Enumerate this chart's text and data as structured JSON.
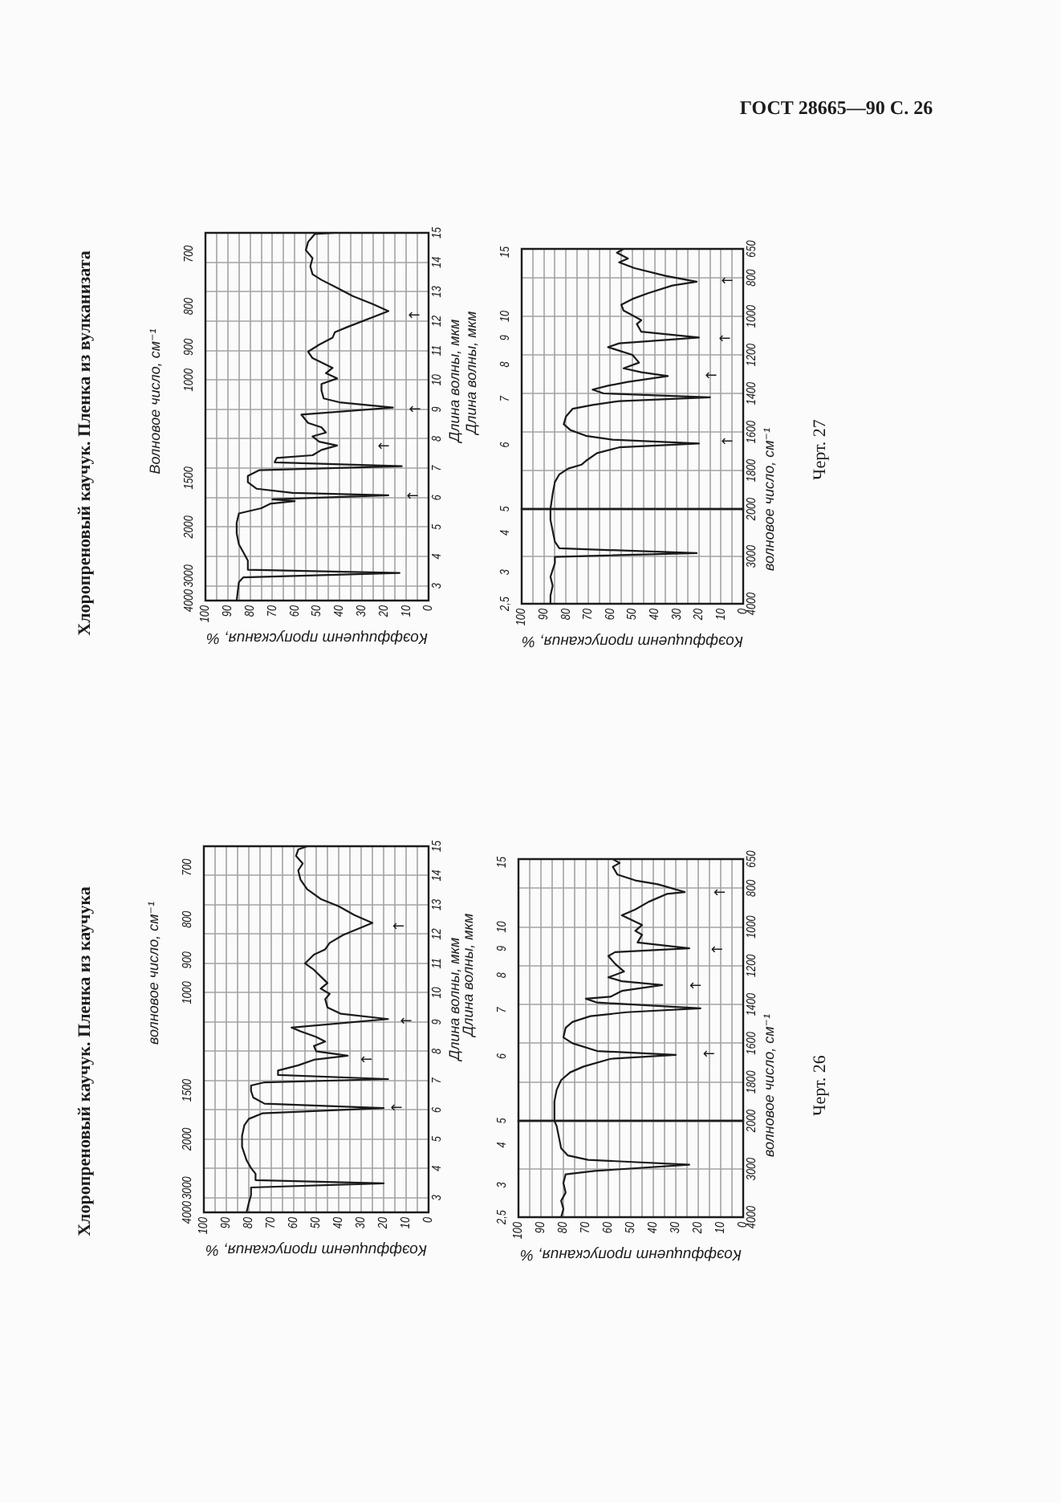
{
  "chart_data": [
    {
      "type": "line",
      "title": "Хлоропреновый каучук. Пленка из вулканизата",
      "xlabel": "Коэффициент пропускания, %",
      "ylabel": "Длина волны, мкм",
      "y2label": "Волновое число, см⁻¹",
      "xlim": [
        100,
        0
      ],
      "xticks": [
        100,
        {
          "value": 95,
          "label": null
        },
        90,
        {
          "value": 85,
          "label": null
        },
        80,
        {
          "value": 75,
          "label": null
        },
        70,
        {
          "value": 65,
          "label": null
        },
        60,
        {
          "value": 55,
          "label": null
        },
        50,
        {
          "value": 45,
          "label": null
        },
        40,
        {
          "value": 35,
          "label": null
        },
        30,
        {
          "value": 25,
          "label": null
        },
        20,
        {
          "value": 15,
          "label": null
        },
        10,
        {
          "value": 5,
          "label": null
        },
        0
      ],
      "ylim": [
        2.5,
        15
      ],
      "yticks": [
        3,
        4,
        5,
        6,
        7,
        8,
        9,
        10,
        11,
        12,
        13,
        14,
        15
      ],
      "grid": true,
      "marker": "none",
      "line_style": "solid",
      "series": [
        {
          "color": "#1a1a1a",
          "x": [
            86,
            85,
            83,
            13,
            81,
            81,
            83,
            85,
            86,
            86,
            85,
            75,
            71,
            60,
            70,
            18,
            61,
            77,
            81,
            81,
            76,
            12,
            69,
            68,
            52,
            48,
            41,
            49,
            52,
            46,
            48,
            54,
            57,
            16,
            40,
            47,
            48,
            48,
            41,
            46,
            43,
            52,
            54,
            49,
            43,
            42,
            36,
            18,
            25,
            34,
            41,
            48,
            52,
            53,
            52,
            55,
            54,
            51,
            42
          ],
          "values": [
            2.5,
            3.13,
            3.29,
            3.44,
            3.55,
            3.86,
            4.14,
            4.41,
            4.78,
            5.15,
            5.46,
            5.64,
            5.79,
            5.88,
            5.94,
            6.08,
            6.16,
            6.3,
            6.52,
            6.74,
            6.93,
            7.07,
            7.2,
            7.35,
            7.44,
            7.62,
            7.77,
            7.9,
            8.08,
            8.21,
            8.39,
            8.54,
            8.82,
            9.06,
            9.24,
            9.37,
            9.64,
            9.86,
            10.05,
            10.23,
            10.41,
            10.74,
            10.96,
            11.2,
            11.44,
            11.62,
            11.81,
            12.34,
            12.58,
            12.85,
            13.13,
            13.4,
            13.59,
            13.86,
            14.14,
            14.41,
            14.69,
            14.96,
            15
          ]
        }
      ],
      "annotations": [
        "4000",
        "3000",
        "2000",
        "1500",
        "1000",
        "900",
        "800",
        "700",
        "←",
        "←",
        "←",
        "←"
      ]
    },
    {
      "type": "line",
      "ylabel": "волновое число, см⁻¹",
      "y2label": "Длина волны, мкм",
      "xlim": [
        100,
        0
      ],
      "xticks": [
        100,
        {
          "value": 95,
          "label": null
        },
        90,
        {
          "value": 85,
          "label": null
        },
        80,
        {
          "value": 75,
          "label": null
        },
        70,
        {
          "value": 65,
          "label": null
        },
        60,
        {
          "value": 55,
          "label": null
        },
        50,
        {
          "value": 45,
          "label": null
        },
        40,
        {
          "value": 35,
          "label": null
        },
        30,
        {
          "value": 25,
          "label": null
        },
        20,
        {
          "value": 15,
          "label": null
        },
        10,
        {
          "value": 5,
          "label": null
        },
        0
      ],
      "ylim": [
        2000,
        650
      ],
      "yticks": [
        2000,
        1800,
        1600,
        1400,
        1200,
        1000,
        800,
        650
      ],
      "tick_labels": "y",
      "grid": true,
      "marker": "none",
      "line_style": "solid",
      "series": [
        {
          "color": "#1a1a1a",
          "x": [
            87,
            86,
            85,
            83,
            79,
            73,
            71,
            66,
            56,
            20,
            59,
            71,
            78,
            81,
            80,
            77,
            68,
            56,
            15,
            63,
            68,
            61,
            52,
            34,
            46,
            54,
            47,
            50,
            61,
            56,
            20,
            46,
            48,
            46,
            54,
            55,
            50,
            43,
            32,
            21,
            35,
            49,
            56,
            52,
            57,
            54
          ],
          "values": [
            2000,
            1920,
            1860,
            1820,
            1790,
            1770,
            1750,
            1710,
            1680,
            1660,
            1640,
            1620,
            1590,
            1560,
            1520,
            1480,
            1460,
            1440,
            1420,
            1400,
            1380,
            1360,
            1340,
            1310,
            1290,
            1270,
            1240,
            1200,
            1160,
            1140,
            1110,
            1080,
            1040,
            1020,
            970,
            940,
            910,
            880,
            840,
            820,
            790,
            750,
            720,
            700,
            670,
            650
          ]
        }
      ],
      "annotations": [
        "5",
        "6",
        "7",
        "8",
        "9",
        "10",
        "15",
        "←",
        "←",
        "←",
        "←",
        "ГОСТ 28665—90 С. 26",
        "Черт. 27"
      ]
    },
    {
      "type": "line",
      "xlabel": "Коэффициент пропускания, %",
      "xlim": [
        100,
        0
      ],
      "xticks": [
        100,
        {
          "value": 95,
          "label": null
        },
        90,
        {
          "value": 85,
          "label": null
        },
        80,
        {
          "value": 75,
          "label": null
        },
        70,
        {
          "value": 65,
          "label": null
        },
        60,
        {
          "value": 55,
          "label": null
        },
        50,
        {
          "value": 45,
          "label": null
        },
        40,
        {
          "value": 35,
          "label": null
        },
        30,
        {
          "value": 25,
          "label": null
        },
        20,
        {
          "value": 15,
          "label": null
        },
        10,
        {
          "value": 5,
          "label": null
        },
        0
      ],
      "ylim": [
        4000,
        2000
      ],
      "yticks": [
        4000,
        3000
      ],
      "grid": true,
      "marker": "none",
      "line_style": "solid",
      "series": [
        {
          "color": "#1a1a1a",
          "x": [
            87,
            87,
            86,
            87,
            85,
            85,
            21,
            83,
            85,
            86,
            87,
            87
          ],
          "values": [
            4000,
            3830,
            3620,
            3430,
            3140,
            3010,
            2930,
            2830,
            2690,
            2460,
            2230,
            2000
          ]
        }
      ],
      "annotations": [
        "2,5",
        "3",
        "4"
      ]
    },
    {
      "type": "line",
      "title": "Хлоропреновый каучук. Пленка из каучука",
      "xlabel": "Коэффициент пропускания, %",
      "ylabel": "Длина волны, мкм",
      "y2label": "волновое число, см⁻¹",
      "xlim": [
        100,
        0
      ],
      "xticks": [
        100,
        {
          "value": 95,
          "label": null
        },
        90,
        {
          "value": 85,
          "label": null
        },
        80,
        {
          "value": 75,
          "label": null
        },
        70,
        {
          "value": 65,
          "label": null
        },
        60,
        {
          "value": 55,
          "label": null
        },
        50,
        {
          "value": 45,
          "label": null
        },
        40,
        {
          "value": 35,
          "label": null
        },
        30,
        {
          "value": 25,
          "label": null
        },
        20,
        {
          "value": 15,
          "label": null
        },
        10,
        {
          "value": 5,
          "label": null
        },
        0
      ],
      "ylim": [
        2.5,
        15
      ],
      "yticks": [
        3,
        4,
        5,
        6,
        7,
        8,
        9,
        10,
        11,
        12,
        13,
        14,
        15
      ],
      "grid": true,
      "marker": "none",
      "line_style": "solid",
      "series": [
        {
          "color": "#1a1a1a",
          "x": [
            81,
            80,
            79,
            79,
            20,
            77,
            77,
            79,
            81,
            83,
            83,
            82,
            80,
            74,
            20,
            73,
            78,
            79,
            79,
            73,
            18,
            67,
            67,
            58,
            51,
            36,
            50,
            51,
            46,
            50,
            57,
            61,
            18,
            39,
            45,
            46,
            44,
            48,
            45,
            51,
            55,
            51,
            46,
            44,
            38,
            25,
            33,
            40,
            48,
            54,
            57,
            58,
            56,
            59,
            58,
            54
          ],
          "values": [
            2.5,
            2.82,
            3.09,
            3.35,
            3.49,
            3.6,
            3.82,
            4.01,
            4.28,
            4.74,
            5.11,
            5.47,
            5.69,
            5.88,
            6.06,
            6.21,
            6.42,
            6.64,
            6.83,
            6.94,
            7.05,
            7.19,
            7.34,
            7.52,
            7.71,
            7.85,
            8,
            8.18,
            8.33,
            8.49,
            8.68,
            8.81,
            9.1,
            9.28,
            9.5,
            9.78,
            9.96,
            10.14,
            10.33,
            10.78,
            11,
            11.3,
            11.48,
            11.7,
            11.97,
            12.38,
            12.65,
            12.95,
            13.2,
            13.53,
            13.86,
            14.17,
            14.41,
            14.67,
            14.89,
            15
          ]
        }
      ],
      "annotations": [
        "4000",
        "3000",
        "2000",
        "1500",
        "1000",
        "900",
        "800",
        "700",
        "←",
        "←",
        "←",
        "←"
      ]
    },
    {
      "type": "line",
      "ylabel": "волновое число, см⁻¹",
      "y2label": "Длина волны, мкм",
      "xlim": [
        100,
        0
      ],
      "xticks": [
        100,
        {
          "value": 95,
          "label": null
        },
        90,
        {
          "value": 85,
          "label": null
        },
        80,
        {
          "value": 75,
          "label": null
        },
        70,
        {
          "value": 65,
          "label": null
        },
        60,
        {
          "value": 55,
          "label": null
        },
        50,
        {
          "value": 45,
          "label": null
        },
        40,
        {
          "value": 35,
          "label": null
        },
        30,
        {
          "value": 25,
          "label": null
        },
        20,
        {
          "value": 15,
          "label": null
        },
        10,
        {
          "value": 5,
          "label": null
        },
        0
      ],
      "ylim": [
        2000,
        650
      ],
      "yticks": [
        2000,
        1800,
        1600,
        1400,
        1200,
        1000,
        800,
        650
      ],
      "tick_labels": "y",
      "grid": true,
      "marker": "none",
      "line_style": "solid",
      "series": [
        {
          "color": "#1a1a1a",
          "x": [
            84,
            84,
            83,
            81,
            77,
            71,
            59,
            30,
            65,
            76,
            80,
            79,
            76,
            68,
            52,
            19,
            65,
            70,
            59,
            54,
            36,
            54,
            60,
            53,
            57,
            60,
            57,
            24,
            47,
            45,
            48,
            45,
            54,
            48,
            42,
            34,
            26,
            38,
            48,
            56,
            58,
            55,
            58
          ],
          "values": [
            2000,
            1900,
            1840,
            1790,
            1750,
            1720,
            1680,
            1660,
            1640,
            1600,
            1570,
            1520,
            1490,
            1460,
            1440,
            1420,
            1390,
            1370,
            1360,
            1330,
            1300,
            1280,
            1260,
            1230,
            1190,
            1150,
            1130,
            1110,
            1080,
            1040,
            1020,
            990,
            940,
            910,
            870,
            830,
            820,
            780,
            760,
            730,
            690,
            670,
            650
          ]
        }
      ],
      "annotations": [
        "5",
        "6",
        "7",
        "8",
        "9",
        "10",
        "15",
        "←",
        "←",
        "←",
        "←",
        "Черт. 26"
      ]
    },
    {
      "type": "line",
      "xlabel": "Коэффициент пропускания, %",
      "xlim": [
        100,
        0
      ],
      "xticks": [
        100,
        {
          "value": 95,
          "label": null
        },
        90,
        {
          "value": 85,
          "label": null
        },
        80,
        {
          "value": 75,
          "label": null
        },
        70,
        {
          "value": 65,
          "label": null
        },
        60,
        {
          "value": 55,
          "label": null
        },
        50,
        {
          "value": 45,
          "label": null
        },
        40,
        {
          "value": 35,
          "label": null
        },
        30,
        {
          "value": 25,
          "label": null
        },
        20,
        {
          "value": 15,
          "label": null
        },
        10,
        {
          "value": 5,
          "label": null
        },
        0
      ],
      "ylim": [
        4000,
        2000
      ],
      "yticks": [
        4000,
        3000
      ],
      "grid": true,
      "marker": "none",
      "line_style": "solid",
      "series": [
        {
          "color": "#1a1a1a",
          "x": [
            81,
            80,
            81,
            79,
            80,
            79,
            66,
            24,
            69,
            78,
            81,
            82,
            83,
            84
          ],
          "values": [
            4000,
            3830,
            3660,
            3490,
            3290,
            3110,
            3040,
            2910,
            2810,
            2720,
            2570,
            2340,
            2110,
            2000
          ]
        }
      ],
      "annotations": [
        "2,5",
        "3",
        "4"
      ]
    }
  ]
}
